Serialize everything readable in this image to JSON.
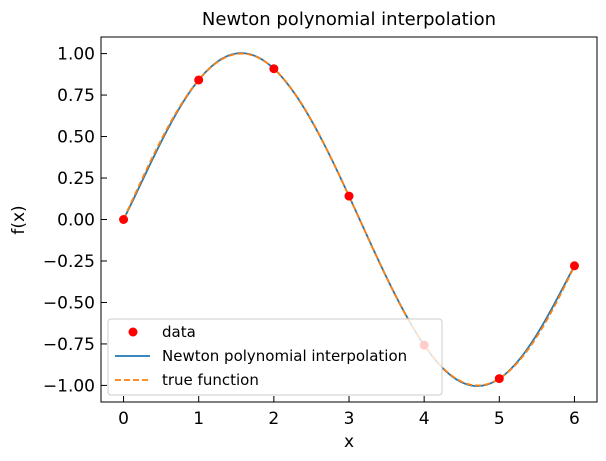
{
  "chart_data": {
    "type": "line",
    "title": "Newton polynomial interpolation",
    "xlabel": "x",
    "ylabel": "f(x)",
    "xlim": [
      -0.3,
      6.3
    ],
    "ylim": [
      -1.1,
      1.1
    ],
    "xticks": [
      "0",
      "1",
      "2",
      "3",
      "4",
      "5",
      "6"
    ],
    "yticks": [
      "1.00",
      "0.75",
      "0.50",
      "0.25",
      "0.00",
      "−0.25",
      "−0.50",
      "−0.75",
      "−1.00"
    ],
    "grid": false,
    "legend_position": "lower left",
    "data_points": {
      "name": "data",
      "color": "#ff0000",
      "x": [
        0,
        1,
        2,
        3,
        4,
        5,
        6
      ],
      "y": [
        0.0,
        0.841,
        0.909,
        0.141,
        -0.757,
        -0.959,
        -0.279
      ]
    },
    "series": [
      {
        "name": "Newton polynomial interpolation",
        "style": "solid",
        "color": "#1f77b4",
        "description": "degree-6 polynomial through the data points"
      },
      {
        "name": "true function",
        "style": "dashed",
        "color": "#ff7f0e",
        "description": "sin(x)"
      }
    ]
  }
}
